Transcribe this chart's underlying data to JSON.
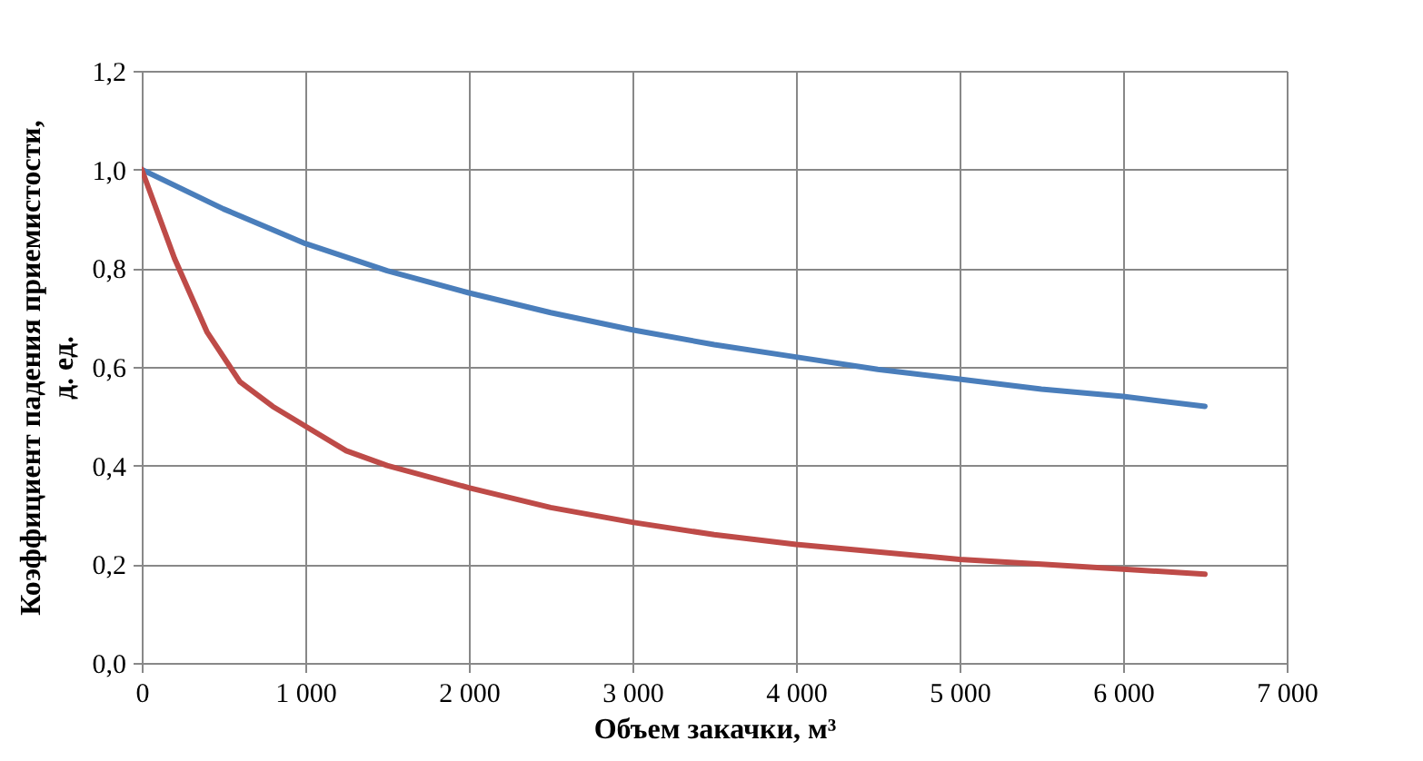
{
  "chart_data": {
    "type": "line",
    "xlabel": "Объем закачки, м³",
    "ylabel": "Коэффициент падения приемистости, д. ед.",
    "xlim": [
      0,
      7000
    ],
    "ylim": [
      0,
      1.2
    ],
    "grid": true,
    "marker": "none",
    "line_style": "solid",
    "xticks": [
      {
        "value": 0,
        "label": "0"
      },
      {
        "value": 1000,
        "label": "1 000"
      },
      {
        "value": 2000,
        "label": "2 000"
      },
      {
        "value": 3000,
        "label": "3 000"
      },
      {
        "value": 4000,
        "label": "4 000"
      },
      {
        "value": 5000,
        "label": "5 000"
      },
      {
        "value": 6000,
        "label": "6 000"
      },
      {
        "value": 7000,
        "label": "7 000"
      }
    ],
    "yticks": [
      {
        "value": 0,
        "label": "0,0"
      },
      {
        "value": 0.2,
        "label": "0,2"
      },
      {
        "value": 0.4,
        "label": "0,4"
      },
      {
        "value": 0.6,
        "label": "0,6"
      },
      {
        "value": 0.8,
        "label": "0,8"
      },
      {
        "value": 1.0,
        "label": "1,0"
      },
      {
        "value": 1.2,
        "label": "1,2"
      }
    ],
    "series": [
      {
        "color": "#4a7ebb",
        "x": [
          0,
          500,
          1000,
          1500,
          2000,
          2500,
          3000,
          3500,
          4000,
          4500,
          5000,
          5500,
          6000,
          6500
        ],
        "values": [
          1.0,
          0.92,
          0.85,
          0.795,
          0.75,
          0.71,
          0.675,
          0.645,
          0.62,
          0.595,
          0.575,
          0.555,
          0.54,
          0.52
        ]
      },
      {
        "color": "#be4b48",
        "x": [
          0,
          200,
          400,
          600,
          800,
          1000,
          1250,
          1500,
          2000,
          2500,
          3000,
          3500,
          4000,
          4500,
          5000,
          5500,
          6000,
          6500
        ],
        "values": [
          1.0,
          0.82,
          0.67,
          0.57,
          0.52,
          0.48,
          0.43,
          0.4,
          0.355,
          0.315,
          0.285,
          0.26,
          0.24,
          0.225,
          0.21,
          0.2,
          0.19,
          0.18
        ]
      }
    ]
  }
}
